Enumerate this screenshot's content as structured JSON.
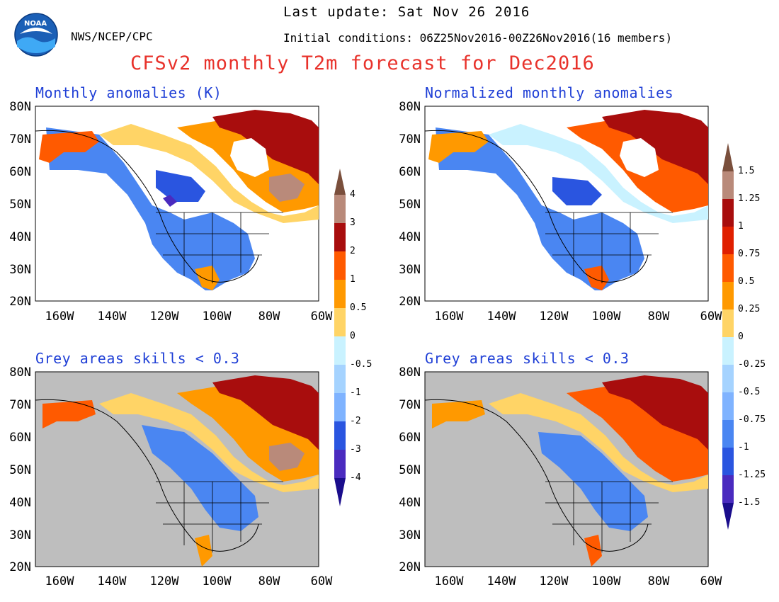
{
  "header": {
    "agency": "NWS/NCEP/CPC",
    "logo_text": "NOAA",
    "last_update": "Last update: Sat Nov 26 2016",
    "initial_conditions": "Initial conditions: 06Z25Nov2016-00Z26Nov2016(16 members)",
    "title": "CFSv2 monthly T2m forecast for Dec2016"
  },
  "panels": [
    {
      "title": "Monthly anomalies (K)",
      "grey_mask": false
    },
    {
      "title": "Normalized monthly anomalies",
      "grey_mask": false
    },
    {
      "title": "Grey areas skills < 0.3",
      "grey_mask": true
    },
    {
      "title": "Grey areas skills < 0.3",
      "grey_mask": true
    }
  ],
  "axes": {
    "lat_labels": [
      "80N",
      "70N",
      "60N",
      "50N",
      "40N",
      "30N",
      "20N"
    ],
    "lon_labels": [
      "160W",
      "140W",
      "120W",
      "100W",
      "80W",
      "60W"
    ]
  },
  "colorbars": [
    {
      "name": "anomalies-K",
      "labels": [
        "4",
        "3",
        "2",
        "1",
        "0.5",
        "0",
        "-0.5",
        "-1",
        "-2",
        "-3",
        "-4"
      ]
    },
    {
      "name": "normalized",
      "labels": [
        "1.5",
        "1.25",
        "1",
        "0.75",
        "0.5",
        "0.25",
        "0",
        "-0.25",
        "-0.5",
        "-0.75",
        "-1",
        "-1.25",
        "-1.5"
      ]
    }
  ],
  "colors": {
    "top_arrow": "#7a4f3c",
    "bottom_arrow": "#1a0d8c",
    "bins": [
      "#b98a7a",
      "#a80d0d",
      "#e01f00",
      "#ff5a00",
      "#ff9900",
      "#ffd466",
      "#fff6a8",
      "#c9f2ff",
      "#a5d3ff",
      "#7fb3ff",
      "#4a86f2",
      "#2a55e0",
      "#2d3ed1",
      "#4a2bbf"
    ],
    "grey": "#bebebe",
    "title_red": "#e8322b",
    "title_blue": "#1f3fd6"
  }
}
